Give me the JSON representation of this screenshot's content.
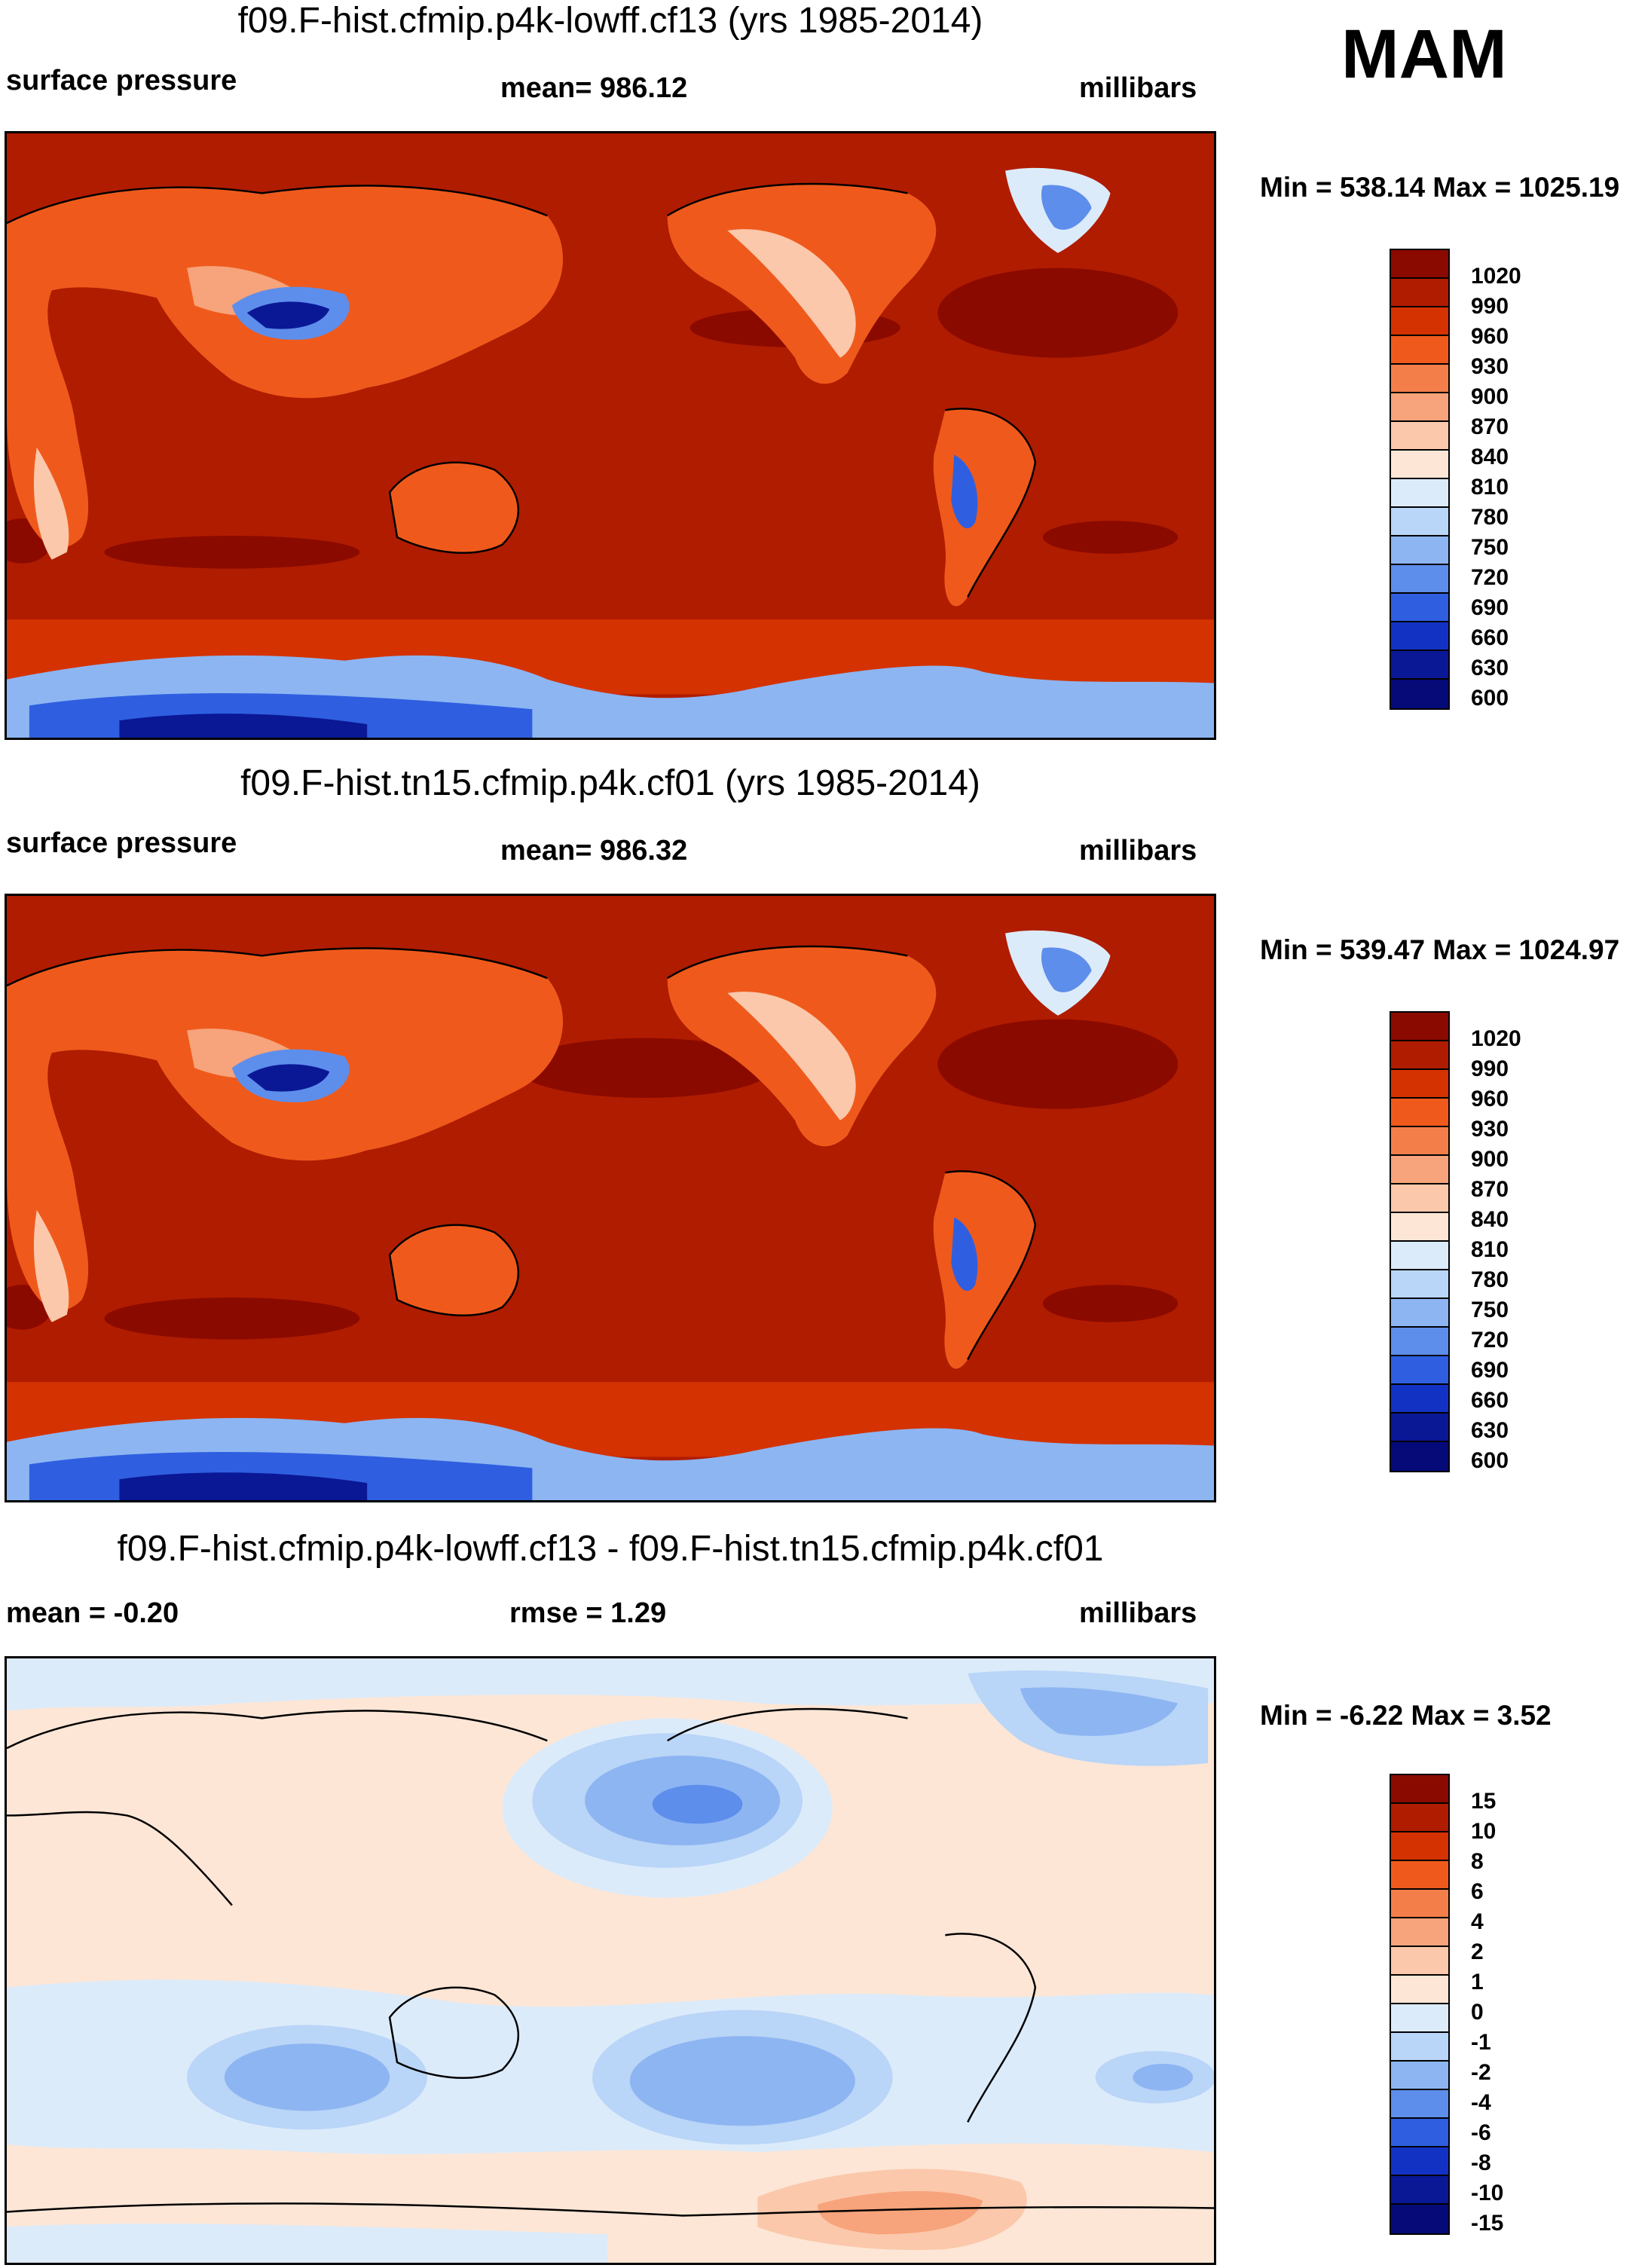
{
  "season": "MAM",
  "panels": [
    {
      "title": "f09.F-hist.cfmip.p4k-lowff.cf13 (yrs 1985-2014)",
      "left_label": "surface pressure",
      "center_label": "mean= 986.12",
      "right_label": "millibars",
      "min_max": "Min = 538.14 Max = 1025.19",
      "map_description": "global surface pressure"
    },
    {
      "title": "f09.F-hist.tn15.cfmip.p4k.cf01 (yrs 1985-2014)",
      "left_label": "surface pressure",
      "center_label": "mean= 986.32",
      "right_label": "millibars",
      "min_max": "Min = 539.47 Max = 1024.97",
      "map_description": "global surface pressure"
    },
    {
      "title": "f09.F-hist.cfmip.p4k-lowff.cf13 - f09.F-hist.tn15.cfmip.p4k.cf01",
      "left_label": "mean =  -0.20",
      "center_label": "rmse =   1.29",
      "right_label": "millibars",
      "min_max": "Min =  -6.22 Max =   3.52",
      "map_description": "surface pressure difference"
    }
  ],
  "colorbars": {
    "pressure": {
      "labels": [
        "1020",
        "990",
        "960",
        "930",
        "900",
        "870",
        "840",
        "810",
        "780",
        "750",
        "720",
        "690",
        "660",
        "630",
        "600"
      ],
      "colors": [
        "#8b0a00",
        "#b01c00",
        "#d43200",
        "#ef5a1c",
        "#f47e4a",
        "#f7a37b",
        "#fbc8ab",
        "#fde6d6",
        "#dcebfa",
        "#b9d5f7",
        "#8db5f2",
        "#5e8eeb",
        "#2f5fe0",
        "#1232c4",
        "#0a1896",
        "#050a78"
      ]
    },
    "difference": {
      "labels": [
        "15",
        "10",
        "8",
        "6",
        "4",
        "2",
        "1",
        "0",
        "-1",
        "-2",
        "-4",
        "-6",
        "-8",
        "-10",
        "-15"
      ],
      "colors": [
        "#8b0a00",
        "#b01c00",
        "#d43200",
        "#ef5a1c",
        "#f47e4a",
        "#f7a37b",
        "#fbc8ab",
        "#fde6d6",
        "#dcebfa",
        "#b9d5f7",
        "#8db5f2",
        "#5e8eeb",
        "#2f5fe0",
        "#1232c4",
        "#0a1896",
        "#050a78"
      ]
    }
  }
}
